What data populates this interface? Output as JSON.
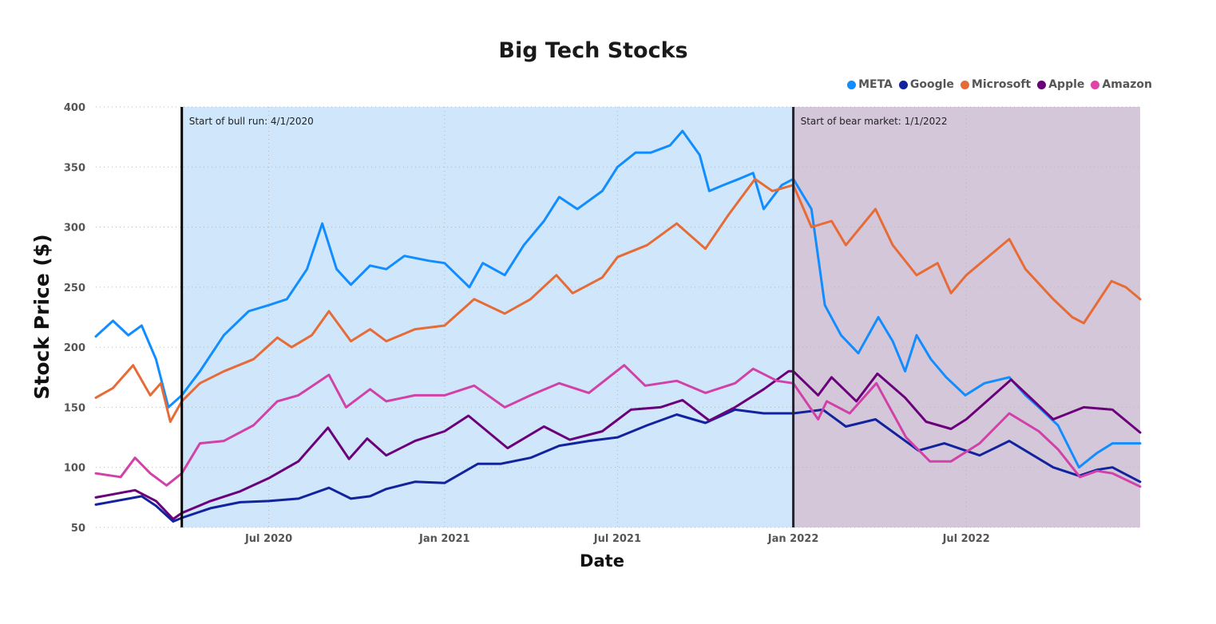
{
  "chart_data": {
    "type": "line",
    "title": "Big Tech Stocks",
    "xlabel": "Date",
    "ylabel": "Stock Price ($)",
    "ylim": [
      50,
      400
    ],
    "xlim": [
      "2020-01-02",
      "2022-12-30"
    ],
    "grid": true,
    "legend_position": "top-right",
    "x_ticks": [
      {
        "date": "2020-07-01",
        "label": "Jul 2020"
      },
      {
        "date": "2021-01-01",
        "label": "Jan 2021"
      },
      {
        "date": "2021-07-01",
        "label": "Jul 2021"
      },
      {
        "date": "2022-01-01",
        "label": "Jan 2022"
      },
      {
        "date": "2022-07-01",
        "label": "Jul 2022"
      }
    ],
    "y_ticks": [
      50,
      100,
      150,
      200,
      250,
      300,
      350,
      400
    ],
    "regions": [
      {
        "start": "2020-04-01",
        "end": "2022-01-01",
        "color": "#d0e6fa",
        "label": "Start of bull run: 4/1/2020"
      },
      {
        "start": "2022-01-01",
        "end": "2022-12-30",
        "color": "#d5c7da",
        "label": "Start of bear market: 1/1/2022"
      }
    ],
    "series": [
      {
        "name": "META",
        "color": "#118dff",
        "points": [
          [
            "2020-01-02",
            209
          ],
          [
            "2020-01-20",
            222
          ],
          [
            "2020-02-05",
            210
          ],
          [
            "2020-02-19",
            218
          ],
          [
            "2020-03-05",
            190
          ],
          [
            "2020-03-18",
            150
          ],
          [
            "2020-04-01",
            160
          ],
          [
            "2020-04-20",
            180
          ],
          [
            "2020-05-15",
            210
          ],
          [
            "2020-06-10",
            230
          ],
          [
            "2020-07-01",
            235
          ],
          [
            "2020-07-20",
            240
          ],
          [
            "2020-08-10",
            265
          ],
          [
            "2020-08-26",
            303
          ],
          [
            "2020-09-10",
            265
          ],
          [
            "2020-09-25",
            252
          ],
          [
            "2020-10-15",
            268
          ],
          [
            "2020-11-01",
            265
          ],
          [
            "2020-11-20",
            276
          ],
          [
            "2020-12-15",
            272
          ],
          [
            "2021-01-01",
            270
          ],
          [
            "2021-01-27",
            250
          ],
          [
            "2021-02-10",
            270
          ],
          [
            "2021-03-05",
            260
          ],
          [
            "2021-03-25",
            285
          ],
          [
            "2021-04-15",
            305
          ],
          [
            "2021-05-01",
            325
          ],
          [
            "2021-05-20",
            315
          ],
          [
            "2021-06-15",
            330
          ],
          [
            "2021-07-01",
            350
          ],
          [
            "2021-07-20",
            362
          ],
          [
            "2021-08-05",
            362
          ],
          [
            "2021-08-25",
            368
          ],
          [
            "2021-09-07",
            380
          ],
          [
            "2021-09-25",
            360
          ],
          [
            "2021-10-05",
            330
          ],
          [
            "2021-10-20",
            335
          ],
          [
            "2021-11-05",
            340
          ],
          [
            "2021-11-20",
            345
          ],
          [
            "2021-12-01",
            315
          ],
          [
            "2021-12-20",
            335
          ],
          [
            "2022-01-01",
            340
          ],
          [
            "2022-01-20",
            315
          ],
          [
            "2022-02-03",
            235
          ],
          [
            "2022-02-20",
            210
          ],
          [
            "2022-03-10",
            195
          ],
          [
            "2022-03-31",
            225
          ],
          [
            "2022-04-15",
            205
          ],
          [
            "2022-04-28",
            180
          ],
          [
            "2022-05-10",
            210
          ],
          [
            "2022-05-25",
            190
          ],
          [
            "2022-06-10",
            175
          ],
          [
            "2022-06-30",
            160
          ],
          [
            "2022-07-20",
            170
          ],
          [
            "2022-08-15",
            175
          ],
          [
            "2022-09-01",
            160
          ],
          [
            "2022-09-15",
            150
          ],
          [
            "2022-10-05",
            135
          ],
          [
            "2022-10-27",
            100
          ],
          [
            "2022-11-15",
            112
          ],
          [
            "2022-12-01",
            120
          ],
          [
            "2022-12-30",
            120
          ]
        ]
      },
      {
        "name": "Google",
        "color": "#12239e",
        "points": [
          [
            "2020-01-02",
            69
          ],
          [
            "2020-02-19",
            76
          ],
          [
            "2020-03-05",
            68
          ],
          [
            "2020-03-23",
            55
          ],
          [
            "2020-04-01",
            58
          ],
          [
            "2020-05-01",
            66
          ],
          [
            "2020-06-01",
            71
          ],
          [
            "2020-07-01",
            72
          ],
          [
            "2020-08-01",
            74
          ],
          [
            "2020-09-02",
            83
          ],
          [
            "2020-09-25",
            74
          ],
          [
            "2020-10-15",
            76
          ],
          [
            "2020-11-01",
            82
          ],
          [
            "2020-12-01",
            88
          ],
          [
            "2021-01-01",
            87
          ],
          [
            "2021-02-05",
            103
          ],
          [
            "2021-03-01",
            103
          ],
          [
            "2021-04-01",
            108
          ],
          [
            "2021-05-01",
            118
          ],
          [
            "2021-06-01",
            122
          ],
          [
            "2021-07-01",
            125
          ],
          [
            "2021-08-01",
            135
          ],
          [
            "2021-09-01",
            144
          ],
          [
            "2021-10-01",
            137
          ],
          [
            "2021-11-01",
            148
          ],
          [
            "2021-12-01",
            145
          ],
          [
            "2022-01-01",
            145
          ],
          [
            "2022-02-01",
            148
          ],
          [
            "2022-02-25",
            134
          ],
          [
            "2022-03-28",
            140
          ],
          [
            "2022-05-12",
            114
          ],
          [
            "2022-06-08",
            120
          ],
          [
            "2022-07-15",
            110
          ],
          [
            "2022-08-15",
            122
          ],
          [
            "2022-09-30",
            100
          ],
          [
            "2022-10-27",
            93
          ],
          [
            "2022-11-15",
            98
          ],
          [
            "2022-12-01",
            100
          ],
          [
            "2022-12-30",
            88
          ]
        ]
      },
      {
        "name": "Microsoft",
        "color": "#e66c37",
        "points": [
          [
            "2020-01-02",
            158
          ],
          [
            "2020-01-20",
            166
          ],
          [
            "2020-02-10",
            185
          ],
          [
            "2020-02-28",
            160
          ],
          [
            "2020-03-10",
            170
          ],
          [
            "2020-03-20",
            138
          ],
          [
            "2020-04-01",
            155
          ],
          [
            "2020-04-20",
            170
          ],
          [
            "2020-05-15",
            180
          ],
          [
            "2020-06-15",
            190
          ],
          [
            "2020-07-10",
            208
          ],
          [
            "2020-07-25",
            200
          ],
          [
            "2020-08-15",
            210
          ],
          [
            "2020-09-02",
            230
          ],
          [
            "2020-09-25",
            205
          ],
          [
            "2020-10-15",
            215
          ],
          [
            "2020-11-01",
            205
          ],
          [
            "2020-12-01",
            215
          ],
          [
            "2021-01-01",
            218
          ],
          [
            "2021-02-01",
            240
          ],
          [
            "2021-03-05",
            228
          ],
          [
            "2021-04-01",
            240
          ],
          [
            "2021-04-28",
            260
          ],
          [
            "2021-05-15",
            245
          ],
          [
            "2021-06-15",
            258
          ],
          [
            "2021-07-01",
            275
          ],
          [
            "2021-08-01",
            285
          ],
          [
            "2021-09-01",
            303
          ],
          [
            "2021-10-01",
            282
          ],
          [
            "2021-10-25",
            310
          ],
          [
            "2021-11-22",
            340
          ],
          [
            "2021-12-10",
            330
          ],
          [
            "2022-01-01",
            335
          ],
          [
            "2022-01-20",
            300
          ],
          [
            "2022-02-10",
            305
          ],
          [
            "2022-02-25",
            285
          ],
          [
            "2022-03-28",
            315
          ],
          [
            "2022-04-15",
            285
          ],
          [
            "2022-05-10",
            260
          ],
          [
            "2022-06-01",
            270
          ],
          [
            "2022-06-15",
            245
          ],
          [
            "2022-07-01",
            260
          ],
          [
            "2022-08-15",
            290
          ],
          [
            "2022-09-01",
            265
          ],
          [
            "2022-09-30",
            240
          ],
          [
            "2022-10-20",
            225
          ],
          [
            "2022-11-01",
            220
          ],
          [
            "2022-11-30",
            255
          ],
          [
            "2022-12-15",
            250
          ],
          [
            "2022-12-30",
            240
          ]
        ]
      },
      {
        "name": "Apple",
        "color": "#6b007b",
        "points": [
          [
            "2020-01-02",
            75
          ],
          [
            "2020-02-12",
            81
          ],
          [
            "2020-03-05",
            72
          ],
          [
            "2020-03-23",
            57
          ],
          [
            "2020-04-01",
            62
          ],
          [
            "2020-05-01",
            72
          ],
          [
            "2020-06-01",
            80
          ],
          [
            "2020-07-01",
            91
          ],
          [
            "2020-08-01",
            105
          ],
          [
            "2020-09-01",
            133
          ],
          [
            "2020-09-23",
            107
          ],
          [
            "2020-10-12",
            124
          ],
          [
            "2020-11-01",
            110
          ],
          [
            "2020-12-01",
            122
          ],
          [
            "2021-01-01",
            130
          ],
          [
            "2021-01-26",
            143
          ],
          [
            "2021-03-08",
            116
          ],
          [
            "2021-04-15",
            134
          ],
          [
            "2021-05-12",
            123
          ],
          [
            "2021-06-15",
            130
          ],
          [
            "2021-07-15",
            148
          ],
          [
            "2021-08-15",
            150
          ],
          [
            "2021-09-07",
            156
          ],
          [
            "2021-10-05",
            139
          ],
          [
            "2021-11-01",
            150
          ],
          [
            "2021-12-01",
            165
          ],
          [
            "2021-12-27",
            180
          ],
          [
            "2022-01-01",
            180
          ],
          [
            "2022-01-27",
            160
          ],
          [
            "2022-02-10",
            175
          ],
          [
            "2022-03-08",
            155
          ],
          [
            "2022-03-30",
            178
          ],
          [
            "2022-04-28",
            158
          ],
          [
            "2022-05-20",
            138
          ],
          [
            "2022-06-15",
            132
          ],
          [
            "2022-07-01",
            140
          ],
          [
            "2022-08-17",
            173
          ],
          [
            "2022-09-10",
            155
          ],
          [
            "2022-09-30",
            140
          ],
          [
            "2022-11-01",
            150
          ],
          [
            "2022-12-01",
            148
          ],
          [
            "2022-12-30",
            129
          ]
        ]
      },
      {
        "name": "Amazon",
        "color": "#d64550",
        "points": [
          [
            "2020-01-02",
            95
          ],
          [
            "2020-01-28",
            92
          ],
          [
            "2020-02-12",
            108
          ],
          [
            "2020-02-28",
            95
          ],
          [
            "2020-03-16",
            85
          ],
          [
            "2020-04-01",
            95
          ],
          [
            "2020-04-20",
            120
          ],
          [
            "2020-05-15",
            122
          ],
          [
            "2020-06-15",
            135
          ],
          [
            "2020-07-10",
            155
          ],
          [
            "2020-08-01",
            160
          ],
          [
            "2020-09-02",
            177
          ],
          [
            "2020-09-20",
            150
          ],
          [
            "2020-10-15",
            165
          ],
          [
            "2020-11-01",
            155
          ],
          [
            "2020-12-01",
            160
          ],
          [
            "2021-01-01",
            160
          ],
          [
            "2021-02-01",
            168
          ],
          [
            "2021-03-05",
            150
          ],
          [
            "2021-04-01",
            160
          ],
          [
            "2021-05-01",
            170
          ],
          [
            "2021-06-01",
            162
          ],
          [
            "2021-07-08",
            185
          ],
          [
            "2021-07-30",
            168
          ],
          [
            "2021-09-01",
            172
          ],
          [
            "2021-10-01",
            162
          ],
          [
            "2021-11-01",
            170
          ],
          [
            "2021-11-20",
            182
          ],
          [
            "2021-12-15",
            172
          ],
          [
            "2022-01-01",
            170
          ],
          [
            "2022-01-27",
            140
          ],
          [
            "2022-02-05",
            155
          ],
          [
            "2022-03-01",
            145
          ],
          [
            "2022-03-29",
            170
          ],
          [
            "2022-04-29",
            125
          ],
          [
            "2022-05-24",
            105
          ],
          [
            "2022-06-15",
            105
          ],
          [
            "2022-07-15",
            120
          ],
          [
            "2022-08-15",
            145
          ],
          [
            "2022-09-15",
            130
          ],
          [
            "2022-10-05",
            115
          ],
          [
            "2022-10-28",
            92
          ],
          [
            "2022-11-15",
            97
          ],
          [
            "2022-12-01",
            95
          ],
          [
            "2022-12-30",
            84
          ]
        ]
      }
    ]
  }
}
